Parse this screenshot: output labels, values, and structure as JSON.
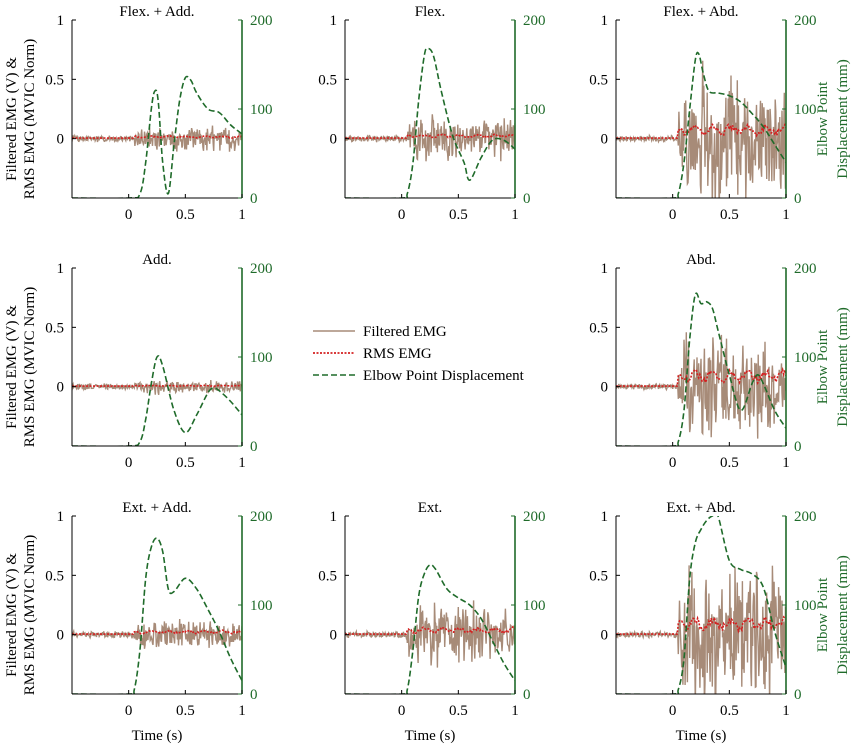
{
  "colors": {
    "filtered_emg": "#a78b78",
    "rms_emg": "#d42020",
    "displacement": "#1f6b2a",
    "axis": "#000000",
    "right_axis": "#1f6b2a"
  },
  "shared": {
    "left_ylabel_line1": "Filtered EMG (V) &",
    "left_ylabel_line2": "RMS EMG (MVIC Norm)",
    "right_ylabel_line1": "Elbow Point",
    "right_ylabel_line2": "Displacement (mm)",
    "xlabel": "Time (s)",
    "x_ticks": [
      0,
      0.5,
      1
    ],
    "x_tick_labels": [
      "0",
      "0.5",
      "1"
    ],
    "left_ticks": [
      0,
      0.5,
      1
    ],
    "left_tick_labels": [
      "0",
      "0.5",
      "1"
    ],
    "right_ticks": [
      0,
      100,
      200
    ],
    "right_tick_labels": [
      "0",
      "100",
      "200"
    ]
  },
  "legend": {
    "items": [
      {
        "label": "Filtered EMG",
        "series": "filtered_emg"
      },
      {
        "label": "RMS EMG",
        "series": "rms_emg"
      },
      {
        "label": "Elbow Point Displacement",
        "series": "displacement"
      }
    ]
  },
  "chart_data": [
    {
      "type": "line",
      "title": "Flex. + Add.",
      "xlim": [
        -0.5,
        1
      ],
      "ylim_left": [
        -0.5,
        1
      ],
      "ylim_right": [
        0,
        200
      ],
      "emg_amplitude": 0.08,
      "rms_level": 0.02,
      "displacement": {
        "x": [
          -0.5,
          0,
          0.1,
          0.15,
          0.2,
          0.23,
          0.26,
          0.3,
          0.35,
          0.4,
          0.45,
          0.5,
          0.55,
          0.6,
          0.7,
          0.8,
          0.9,
          1
        ],
        "y": [
          0,
          0,
          5,
          40,
          100,
          120,
          110,
          40,
          5,
          60,
          110,
          135,
          132,
          118,
          100,
          96,
          82,
          72
        ]
      }
    },
    {
      "type": "line",
      "title": "Flex.",
      "xlim": [
        -0.5,
        1
      ],
      "ylim_left": [
        -0.5,
        1
      ],
      "ylim_right": [
        0,
        200
      ],
      "emg_amplitude": 0.15,
      "rms_level": 0.03,
      "displacement": {
        "x": [
          -0.5,
          0,
          0.05,
          0.1,
          0.15,
          0.2,
          0.23,
          0.28,
          0.35,
          0.45,
          0.55,
          0.6,
          0.7,
          0.8,
          0.9,
          1
        ],
        "y": [
          0,
          0,
          5,
          40,
          110,
          160,
          168,
          160,
          120,
          70,
          40,
          20,
          45,
          65,
          65,
          55
        ]
      }
    },
    {
      "type": "line",
      "title": "Flex. + Abd.",
      "xlim": [
        -0.5,
        1
      ],
      "ylim_left": [
        -0.5,
        1
      ],
      "ylim_right": [
        0,
        200
      ],
      "emg_amplitude": 0.45,
      "rms_level": 0.1,
      "displacement": {
        "x": [
          -0.5,
          0,
          0.05,
          0.1,
          0.15,
          0.2,
          0.23,
          0.27,
          0.32,
          0.4,
          0.5,
          0.6,
          0.7,
          0.8,
          0.9,
          1
        ],
        "y": [
          0,
          0,
          5,
          40,
          100,
          155,
          162,
          140,
          120,
          118,
          115,
          108,
          95,
          80,
          60,
          40
        ]
      }
    },
    {
      "type": "line",
      "title": "Add.",
      "xlim": [
        -0.5,
        1
      ],
      "ylim_left": [
        -0.5,
        1
      ],
      "ylim_right": [
        0,
        200
      ],
      "emg_amplitude": 0.05,
      "rms_level": 0.01,
      "displacement": {
        "x": [
          -0.5,
          0,
          0.1,
          0.15,
          0.2,
          0.25,
          0.3,
          0.4,
          0.5,
          0.6,
          0.7,
          0.75,
          0.8,
          0.9,
          1
        ],
        "y": [
          0,
          0,
          5,
          30,
          70,
          100,
          90,
          40,
          15,
          35,
          60,
          65,
          62,
          50,
          35
        ]
      }
    },
    null,
    {
      "type": "line",
      "title": "Abd.",
      "xlim": [
        -0.5,
        1
      ],
      "ylim_left": [
        -0.5,
        1
      ],
      "ylim_right": [
        0,
        200
      ],
      "emg_amplitude": 0.35,
      "rms_level": 0.12,
      "displacement": {
        "x": [
          -0.5,
          0,
          0.05,
          0.1,
          0.15,
          0.2,
          0.25,
          0.3,
          0.35,
          0.4,
          0.5,
          0.6,
          0.7,
          0.75,
          0.8,
          0.9,
          1
        ],
        "y": [
          0,
          0,
          5,
          40,
          120,
          170,
          160,
          162,
          155,
          130,
          80,
          40,
          70,
          80,
          70,
          40,
          20
        ]
      }
    },
    {
      "type": "line",
      "title": "Ext. + Add.",
      "xlim": [
        -0.5,
        1
      ],
      "ylim_left": [
        -0.5,
        1
      ],
      "ylim_right": [
        0,
        200
      ],
      "emg_amplitude": 0.1,
      "rms_level": 0.03,
      "displacement": {
        "x": [
          -0.5,
          0,
          0.05,
          0.1,
          0.15,
          0.2,
          0.25,
          0.3,
          0.35,
          0.4,
          0.5,
          0.6,
          0.7,
          0.8,
          0.9,
          1
        ],
        "y": [
          0,
          0,
          5,
          50,
          130,
          165,
          175,
          160,
          118,
          115,
          130,
          118,
          95,
          70,
          40,
          15
        ]
      }
    },
    {
      "type": "line",
      "title": "Ext.",
      "xlim": [
        -0.5,
        1
      ],
      "ylim_left": [
        -0.5,
        1
      ],
      "ylim_right": [
        0,
        200
      ],
      "emg_amplitude": 0.2,
      "rms_level": 0.05,
      "displacement": {
        "x": [
          -0.5,
          0,
          0.05,
          0.1,
          0.15,
          0.2,
          0.25,
          0.3,
          0.4,
          0.5,
          0.6,
          0.7,
          0.8,
          0.9,
          1
        ],
        "y": [
          0,
          0,
          5,
          50,
          110,
          135,
          145,
          140,
          118,
          108,
          100,
          85,
          60,
          35,
          15
        ]
      }
    },
    {
      "type": "line",
      "title": "Ext. + Abd.",
      "xlim": [
        -0.5,
        1
      ],
      "ylim_left": [
        -0.5,
        1
      ],
      "ylim_right": [
        0,
        200
      ],
      "emg_amplitude": 0.45,
      "rms_level": 0.12,
      "displacement": {
        "x": [
          -0.5,
          0,
          0.05,
          0.1,
          0.15,
          0.2,
          0.25,
          0.3,
          0.35,
          0.4,
          0.5,
          0.6,
          0.7,
          0.8,
          0.9,
          1
        ],
        "y": [
          0,
          0,
          5,
          40,
          130,
          170,
          185,
          195,
          200,
          200,
          150,
          140,
          135,
          120,
          70,
          30
        ]
      }
    }
  ]
}
